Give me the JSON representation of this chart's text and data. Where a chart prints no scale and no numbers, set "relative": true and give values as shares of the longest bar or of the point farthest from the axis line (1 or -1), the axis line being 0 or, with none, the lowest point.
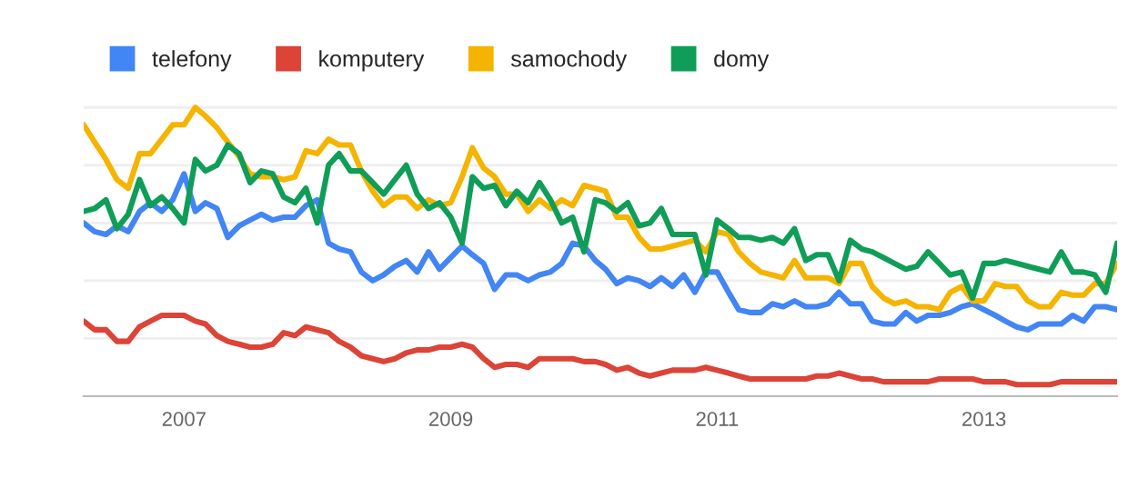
{
  "chart_data": {
    "type": "line",
    "relative": true,
    "legend": "top left",
    "grid": "y",
    "x": [
      "2006-04",
      "2006-05",
      "2006-06",
      "2006-07",
      "2006-08",
      "2006-09",
      "2006-10",
      "2006-11",
      "2006-12",
      "2007-01",
      "2007-02",
      "2007-03",
      "2007-04",
      "2007-05",
      "2007-06",
      "2007-07",
      "2007-08",
      "2007-09",
      "2007-10",
      "2007-11",
      "2007-12",
      "2008-01",
      "2008-02",
      "2008-03",
      "2008-04",
      "2008-05",
      "2008-06",
      "2008-07",
      "2008-08",
      "2008-09",
      "2008-10",
      "2008-11",
      "2008-12",
      "2009-01",
      "2009-02",
      "2009-03",
      "2009-04",
      "2009-05",
      "2009-06",
      "2009-07",
      "2009-08",
      "2009-09",
      "2009-10",
      "2009-11",
      "2009-12",
      "2010-01",
      "2010-02",
      "2010-03",
      "2010-04",
      "2010-05",
      "2010-06",
      "2010-07",
      "2010-08",
      "2010-09",
      "2010-10",
      "2010-11",
      "2010-12",
      "2011-01",
      "2011-02",
      "2011-03",
      "2011-04",
      "2011-05",
      "2011-06",
      "2011-07",
      "2011-08",
      "2011-09",
      "2011-10",
      "2011-11",
      "2011-12",
      "2012-01",
      "2012-02",
      "2012-03",
      "2012-04",
      "2012-05",
      "2012-06",
      "2012-07",
      "2012-08",
      "2012-09",
      "2012-10",
      "2012-11",
      "2012-12",
      "2013-01",
      "2013-02",
      "2013-03",
      "2013-04",
      "2013-05",
      "2013-06",
      "2013-07",
      "2013-08",
      "2013-09",
      "2013-10",
      "2013-11",
      "2013-12",
      "2014-01"
    ],
    "xlim": [
      "2006-04",
      "2014-01"
    ],
    "xticks": [
      {
        "value": "2007-01",
        "label": "2007"
      },
      {
        "value": "2009-01",
        "label": "2009"
      },
      {
        "value": "2011-01",
        "label": "2011"
      },
      {
        "value": "2013-01",
        "label": "2013"
      }
    ],
    "series": [
      {
        "name": "telefony",
        "color": "#4285f4",
        "values": [
          0.6,
          0.57,
          0.56,
          0.59,
          0.57,
          0.64,
          0.67,
          0.64,
          0.68,
          0.77,
          0.64,
          0.67,
          0.65,
          0.55,
          0.59,
          0.61,
          0.63,
          0.61,
          0.62,
          0.62,
          0.66,
          0.68,
          0.53,
          0.51,
          0.5,
          0.43,
          0.4,
          0.42,
          0.45,
          0.47,
          0.43,
          0.5,
          0.44,
          0.48,
          0.52,
          0.49,
          0.46,
          0.37,
          0.42,
          0.42,
          0.4,
          0.42,
          0.43,
          0.46,
          0.53,
          0.52,
          0.47,
          0.44,
          0.39,
          0.41,
          0.4,
          0.38,
          0.41,
          0.38,
          0.42,
          0.36,
          0.43,
          0.43,
          0.36,
          0.3,
          0.29,
          0.29,
          0.32,
          0.31,
          0.33,
          0.31,
          0.31,
          0.32,
          0.36,
          0.32,
          0.32,
          0.26,
          0.25,
          0.25,
          0.29,
          0.26,
          0.28,
          0.28,
          0.29,
          0.31,
          0.32,
          0.3,
          0.28,
          0.26,
          0.24,
          0.23,
          0.25,
          0.25,
          0.25,
          0.28,
          0.26,
          0.31,
          0.31,
          0.3
        ]
      },
      {
        "name": "komputery",
        "color": "#db4437",
        "values": [
          0.26,
          0.23,
          0.23,
          0.19,
          0.19,
          0.24,
          0.26,
          0.28,
          0.28,
          0.28,
          0.26,
          0.25,
          0.21,
          0.19,
          0.18,
          0.17,
          0.17,
          0.18,
          0.22,
          0.21,
          0.24,
          0.23,
          0.22,
          0.19,
          0.17,
          0.14,
          0.13,
          0.12,
          0.13,
          0.15,
          0.16,
          0.16,
          0.17,
          0.17,
          0.18,
          0.17,
          0.13,
          0.1,
          0.11,
          0.11,
          0.1,
          0.13,
          0.13,
          0.13,
          0.13,
          0.12,
          0.12,
          0.11,
          0.09,
          0.1,
          0.08,
          0.07,
          0.08,
          0.09,
          0.09,
          0.09,
          0.1,
          0.09,
          0.08,
          0.07,
          0.06,
          0.06,
          0.06,
          0.06,
          0.06,
          0.06,
          0.07,
          0.07,
          0.08,
          0.07,
          0.06,
          0.06,
          0.05,
          0.05,
          0.05,
          0.05,
          0.05,
          0.06,
          0.06,
          0.06,
          0.06,
          0.05,
          0.05,
          0.05,
          0.04,
          0.04,
          0.04,
          0.04,
          0.05,
          0.05,
          0.05,
          0.05,
          0.05,
          0.05
        ]
      },
      {
        "name": "samochody",
        "color": "#f4b400",
        "values": [
          0.94,
          0.88,
          0.82,
          0.75,
          0.72,
          0.84,
          0.84,
          0.89,
          0.94,
          0.94,
          1.0,
          0.97,
          0.93,
          0.88,
          0.83,
          0.77,
          0.76,
          0.76,
          0.75,
          0.76,
          0.85,
          0.84,
          0.89,
          0.87,
          0.87,
          0.78,
          0.71,
          0.66,
          0.69,
          0.69,
          0.65,
          0.68,
          0.66,
          0.67,
          0.76,
          0.86,
          0.79,
          0.76,
          0.7,
          0.7,
          0.64,
          0.68,
          0.65,
          0.68,
          0.66,
          0.73,
          0.72,
          0.71,
          0.62,
          0.62,
          0.55,
          0.51,
          0.51,
          0.52,
          0.53,
          0.54,
          0.5,
          0.57,
          0.56,
          0.5,
          0.46,
          0.43,
          0.42,
          0.41,
          0.47,
          0.41,
          0.41,
          0.41,
          0.39,
          0.46,
          0.46,
          0.38,
          0.34,
          0.32,
          0.33,
          0.31,
          0.31,
          0.3,
          0.36,
          0.38,
          0.33,
          0.33,
          0.39,
          0.38,
          0.38,
          0.33,
          0.31,
          0.31,
          0.36,
          0.35,
          0.35,
          0.39,
          0.39,
          0.46
        ]
      },
      {
        "name": "domy",
        "color": "#0f9d58",
        "values": [
          0.64,
          0.65,
          0.68,
          0.58,
          0.63,
          0.75,
          0.66,
          0.69,
          0.65,
          0.6,
          0.82,
          0.78,
          0.8,
          0.87,
          0.84,
          0.74,
          0.78,
          0.77,
          0.69,
          0.67,
          0.72,
          0.6,
          0.8,
          0.84,
          0.78,
          0.78,
          0.74,
          0.7,
          0.75,
          0.8,
          0.7,
          0.65,
          0.67,
          0.62,
          0.53,
          0.76,
          0.72,
          0.73,
          0.66,
          0.71,
          0.67,
          0.74,
          0.68,
          0.6,
          0.62,
          0.5,
          0.68,
          0.67,
          0.64,
          0.67,
          0.59,
          0.6,
          0.65,
          0.56,
          0.56,
          0.56,
          0.42,
          0.61,
          0.58,
          0.55,
          0.55,
          0.54,
          0.55,
          0.53,
          0.58,
          0.47,
          0.49,
          0.49,
          0.4,
          0.54,
          0.51,
          0.5,
          0.48,
          0.46,
          0.44,
          0.45,
          0.5,
          0.46,
          0.42,
          0.43,
          0.34,
          0.46,
          0.46,
          0.47,
          0.46,
          0.45,
          0.44,
          0.43,
          0.5,
          0.43,
          0.43,
          0.42,
          0.36,
          0.53
        ]
      }
    ]
  }
}
